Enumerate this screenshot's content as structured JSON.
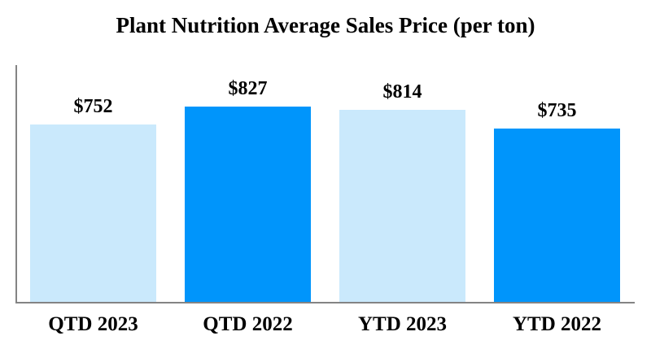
{
  "chart_data": {
    "type": "bar",
    "title": "Plant Nutrition Average Sales Price (per ton)",
    "categories": [
      "QTD 2023",
      "QTD 2022",
      "YTD 2023",
      "YTD 2022"
    ],
    "values": [
      752,
      827,
      814,
      735
    ],
    "value_labels": [
      "$752",
      "$827",
      "$814",
      "$735"
    ],
    "unit": "$ per ton",
    "bar_colors": [
      "#CAE9FC",
      "#0095FB",
      "#CAE9FC",
      "#0095FB"
    ],
    "light_bar_color": "#CAE9FC",
    "dark_bar_color": "#0095FB",
    "axis_color": "#848484",
    "text_color": "#000000",
    "background_color": "#FFFFFF",
    "xlabel": "",
    "ylabel": "",
    "ylim": [
      0,
      1010
    ],
    "grid": false,
    "legend": false,
    "y_ticks_visible": false
  }
}
